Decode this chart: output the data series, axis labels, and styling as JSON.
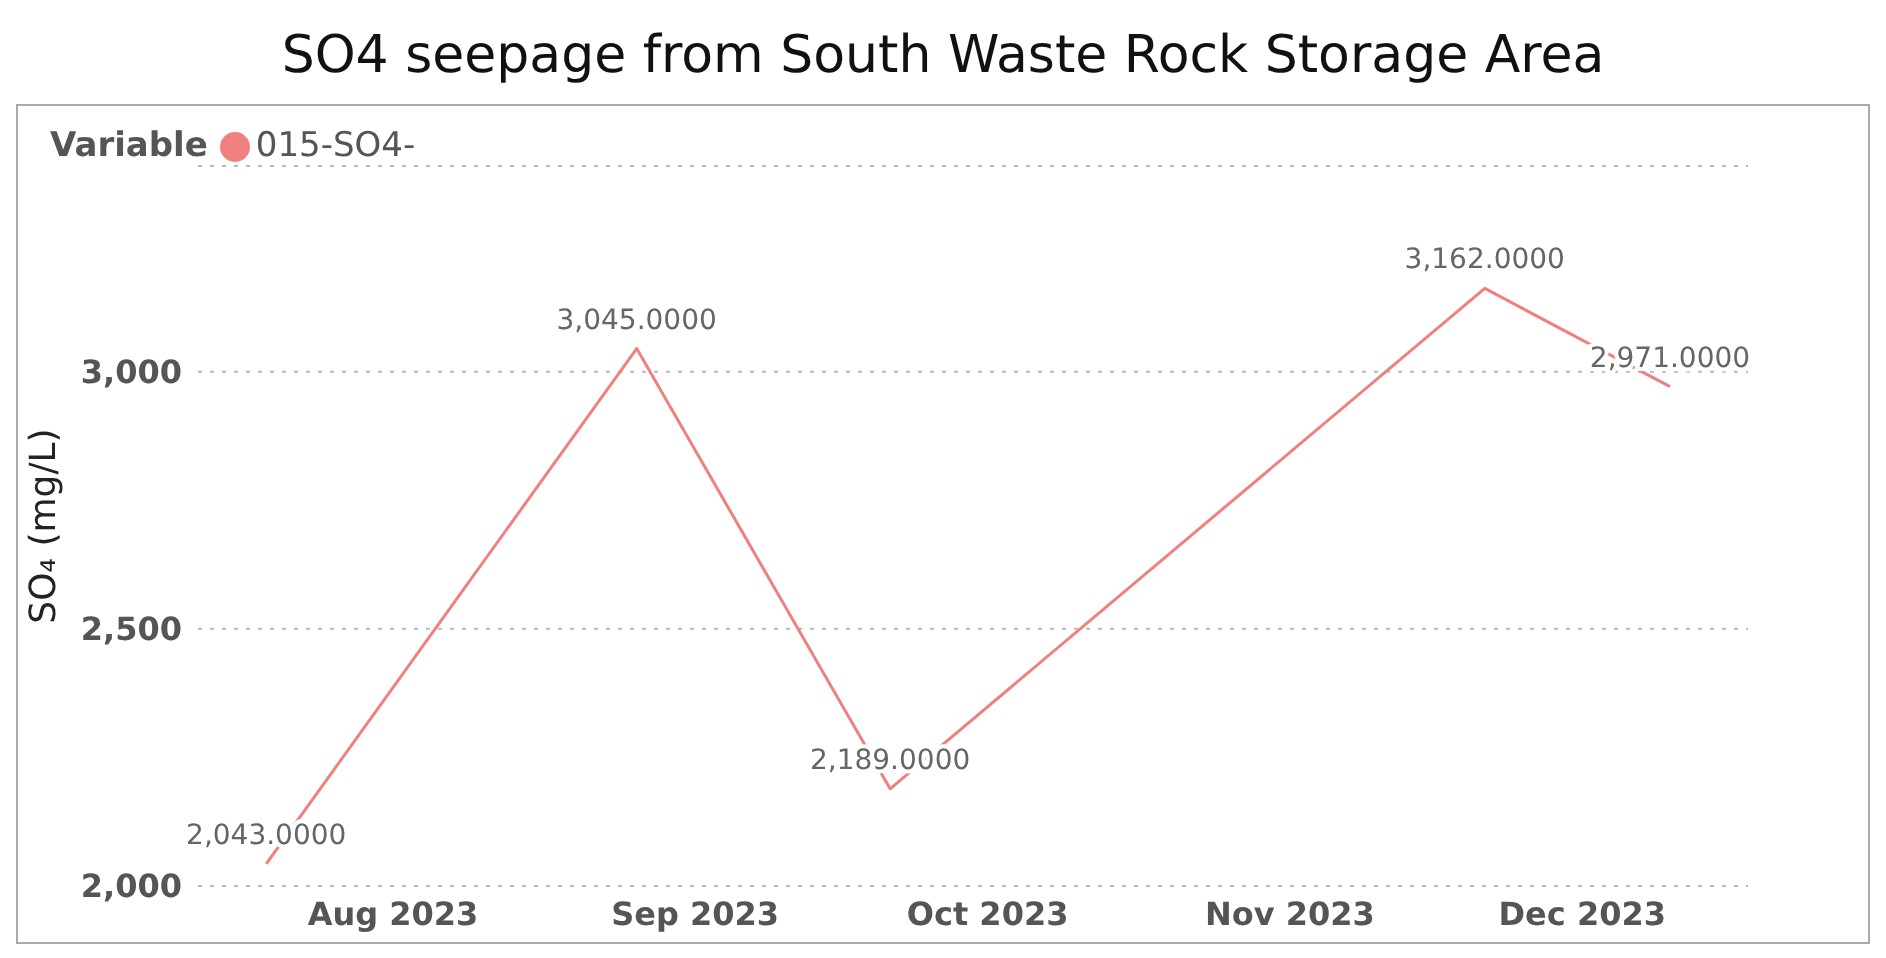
{
  "chart_data": {
    "type": "line",
    "title": "SO4 seepage from South Waste Rock Storage Area",
    "ylabel": "SO₄ (mg/L)",
    "legend_title": "Variable",
    "legend": "top left",
    "grid": "y",
    "marker": "none",
    "line_style": "solid",
    "x": [
      "2023-07-19",
      "2023-08-26",
      "2023-09-21",
      "2023-11-21",
      "2023-12-10"
    ],
    "series": [
      {
        "name": "015-SO4-",
        "color": "#f08080",
        "values": [
          2043,
          3045,
          2189,
          3162,
          2971
        ],
        "value_labels": [
          "2,043.0000",
          "3,045.0000",
          "2,189.0000",
          "3,162.0000",
          "2,971.0000"
        ]
      }
    ],
    "xlim": [
      "2023-07-12",
      "2023-12-18"
    ],
    "xticks": [
      {
        "value": "2023-08-01",
        "label": "Aug 2023"
      },
      {
        "value": "2023-09-01",
        "label": "Sep 2023"
      },
      {
        "value": "2023-10-01",
        "label": "Oct 2023"
      },
      {
        "value": "2023-11-01",
        "label": "Nov 2023"
      },
      {
        "value": "2023-12-01",
        "label": "Dec 2023"
      }
    ],
    "ylim": [
      2000,
      3400
    ],
    "yticks": [
      {
        "value": 2000,
        "label": "2,000"
      },
      {
        "value": 2500,
        "label": "2,500"
      },
      {
        "value": 3000,
        "label": "3,000"
      }
    ]
  }
}
